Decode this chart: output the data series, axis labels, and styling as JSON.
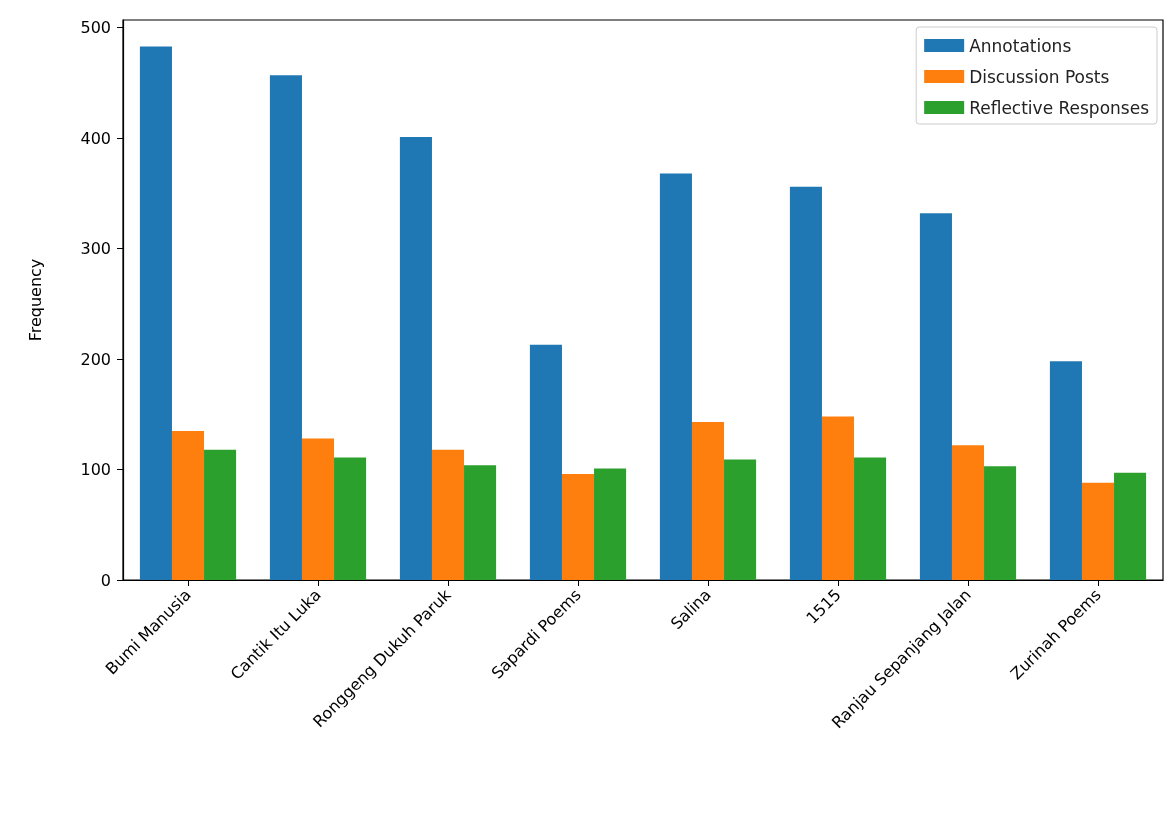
{
  "chart_data": {
    "type": "bar",
    "ylabel": "Frequency",
    "categories": [
      "Bumi Manusia",
      "Cantik Itu Luka",
      "Ronggeng Dukuh Paruk",
      "Sapardi Poems",
      "Salina",
      "1515",
      "Ranjau Sepanjang Jalan",
      "Zurinah Poems"
    ],
    "series": [
      {
        "name": "Annotations",
        "color": "#1f77b4",
        "values": [
          483,
          457,
          401,
          213,
          368,
          356,
          332,
          198
        ]
      },
      {
        "name": "Discussion Posts",
        "color": "#ff7f0e",
        "values": [
          135,
          128,
          118,
          96,
          143,
          148,
          122,
          88
        ]
      },
      {
        "name": "Reflective Responses",
        "color": "#2ca02c",
        "values": [
          118,
          111,
          104,
          101,
          109,
          111,
          103,
          97
        ]
      }
    ],
    "ylim": [
      0,
      507
    ],
    "yticks": [
      0,
      100,
      200,
      300,
      400,
      500
    ],
    "grid": false,
    "legend": "top right"
  }
}
